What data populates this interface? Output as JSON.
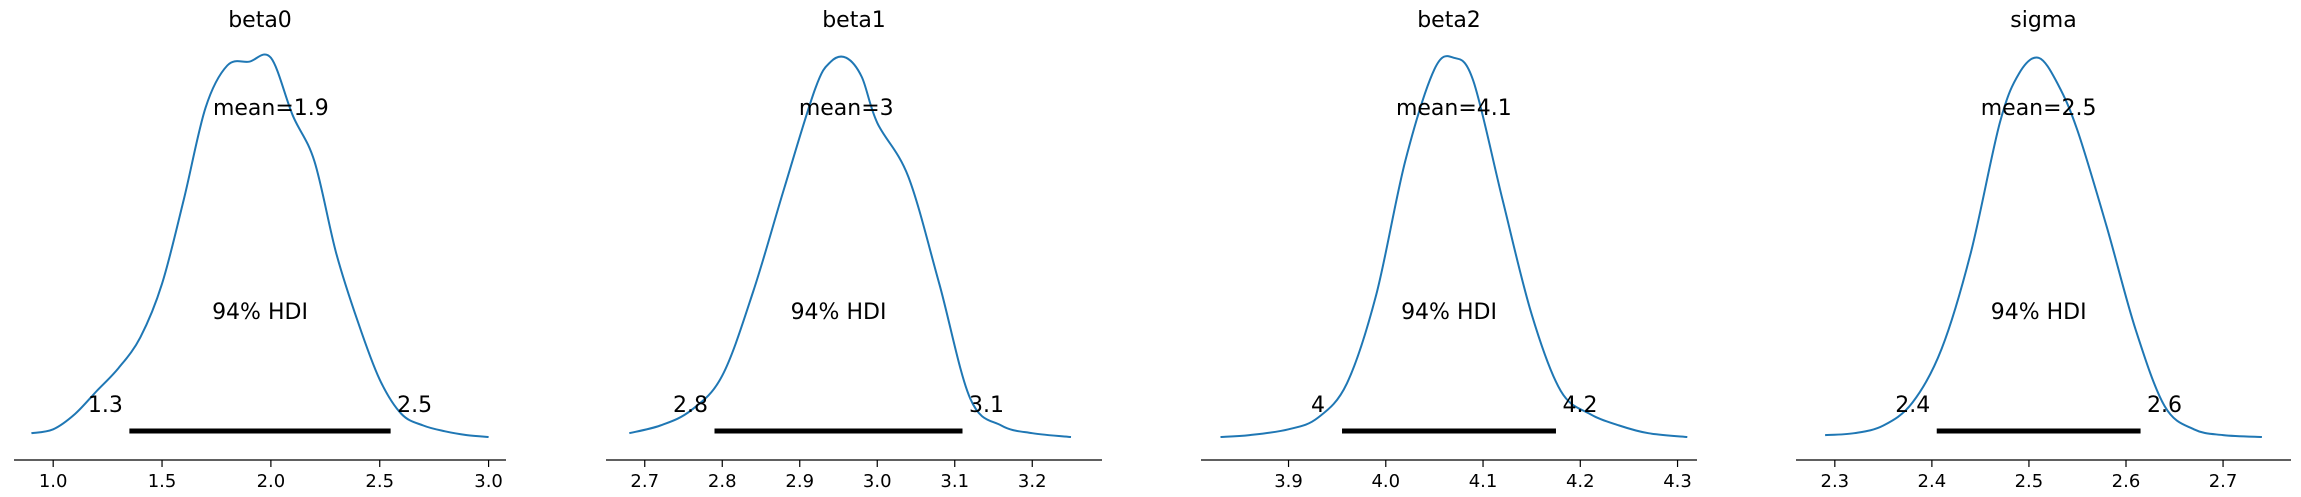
{
  "chart_data": [
    {
      "type": "line",
      "title": "beta0",
      "x": [
        0.9,
        1.0,
        1.1,
        1.2,
        1.3,
        1.4,
        1.5,
        1.6,
        1.7,
        1.8,
        1.9,
        2.0,
        2.1,
        2.2,
        2.3,
        2.4,
        2.5,
        2.6,
        2.7,
        2.8,
        2.9,
        3.0
      ],
      "density": [
        0.01,
        0.02,
        0.06,
        0.12,
        0.18,
        0.26,
        0.4,
        0.62,
        0.86,
        0.97,
        0.98,
        0.99,
        0.84,
        0.72,
        0.48,
        0.3,
        0.15,
        0.06,
        0.03,
        0.015,
        0.005,
        0.0
      ],
      "mean_label": "mean=1.9",
      "hdi_label": "94% HDI",
      "hdi": [
        1.35,
        2.55
      ],
      "hdi_low_label": "1.3",
      "hdi_high_label": "2.5",
      "xticks": [
        1.0,
        1.5,
        2.0,
        2.5,
        3.0
      ],
      "xtick_labels": [
        "1.0",
        "1.5",
        "2.0",
        "2.5",
        "3.0"
      ],
      "xlim": [
        0.82,
        3.08
      ]
    },
    {
      "type": "line",
      "title": "beta1",
      "x": [
        2.68,
        2.72,
        2.76,
        2.8,
        2.84,
        2.88,
        2.92,
        2.94,
        2.96,
        2.98,
        3.0,
        3.04,
        3.08,
        3.12,
        3.16,
        3.2,
        3.25
      ],
      "density": [
        0.01,
        0.03,
        0.07,
        0.16,
        0.38,
        0.65,
        0.91,
        0.98,
        0.99,
        0.94,
        0.82,
        0.68,
        0.4,
        0.1,
        0.03,
        0.01,
        0.0
      ],
      "mean_label": "mean=3",
      "hdi_label": "94% HDI",
      "hdi": [
        2.79,
        3.11
      ],
      "hdi_low_label": "2.8",
      "hdi_high_label": "3.1",
      "xticks": [
        2.7,
        2.8,
        2.9,
        3.0,
        3.1,
        3.2
      ],
      "xtick_labels": [
        "2.7",
        "2.8",
        "2.9",
        "3.0",
        "3.1",
        "3.2"
      ],
      "xlim": [
        2.65,
        3.29
      ]
    },
    {
      "type": "line",
      "title": "beta2",
      "x": [
        3.83,
        3.86,
        3.9,
        3.93,
        3.96,
        3.99,
        4.02,
        4.05,
        4.07,
        4.09,
        4.12,
        4.15,
        4.18,
        4.21,
        4.24,
        4.27,
        4.31
      ],
      "density": [
        0.0,
        0.005,
        0.02,
        0.05,
        0.14,
        0.37,
        0.72,
        0.96,
        0.99,
        0.93,
        0.62,
        0.32,
        0.12,
        0.06,
        0.03,
        0.01,
        0.0
      ],
      "mean_label": "mean=4.1",
      "hdi_label": "94% HDI",
      "hdi": [
        3.955,
        4.175
      ],
      "hdi_low_label": "4",
      "hdi_high_label": "4.2",
      "xticks": [
        3.9,
        4.0,
        4.1,
        4.2,
        4.3
      ],
      "xtick_labels": [
        "3.9",
        "4.0",
        "4.1",
        "4.2",
        "4.3"
      ],
      "xlim": [
        3.81,
        4.32
      ]
    },
    {
      "type": "line",
      "title": "sigma",
      "x": [
        2.29,
        2.32,
        2.35,
        2.38,
        2.41,
        2.44,
        2.47,
        2.49,
        2.51,
        2.53,
        2.55,
        2.58,
        2.61,
        2.64,
        2.67,
        2.7,
        2.74
      ],
      "density": [
        0.005,
        0.01,
        0.03,
        0.09,
        0.23,
        0.48,
        0.82,
        0.95,
        0.99,
        0.92,
        0.8,
        0.55,
        0.28,
        0.08,
        0.02,
        0.005,
        0.0
      ],
      "mean_label": "mean=2.5",
      "hdi_label": "94% HDI",
      "hdi": [
        2.405,
        2.615
      ],
      "hdi_low_label": "2.4",
      "hdi_high_label": "2.6",
      "xticks": [
        2.3,
        2.4,
        2.5,
        2.6,
        2.7
      ],
      "xtick_labels": [
        "2.3",
        "2.4",
        "2.5",
        "2.6",
        "2.7"
      ],
      "xlim": [
        2.26,
        2.77
      ]
    }
  ],
  "colors": {
    "curve": "#1f77b4",
    "hdi_bar": "#000000",
    "axis": "#000000"
  }
}
